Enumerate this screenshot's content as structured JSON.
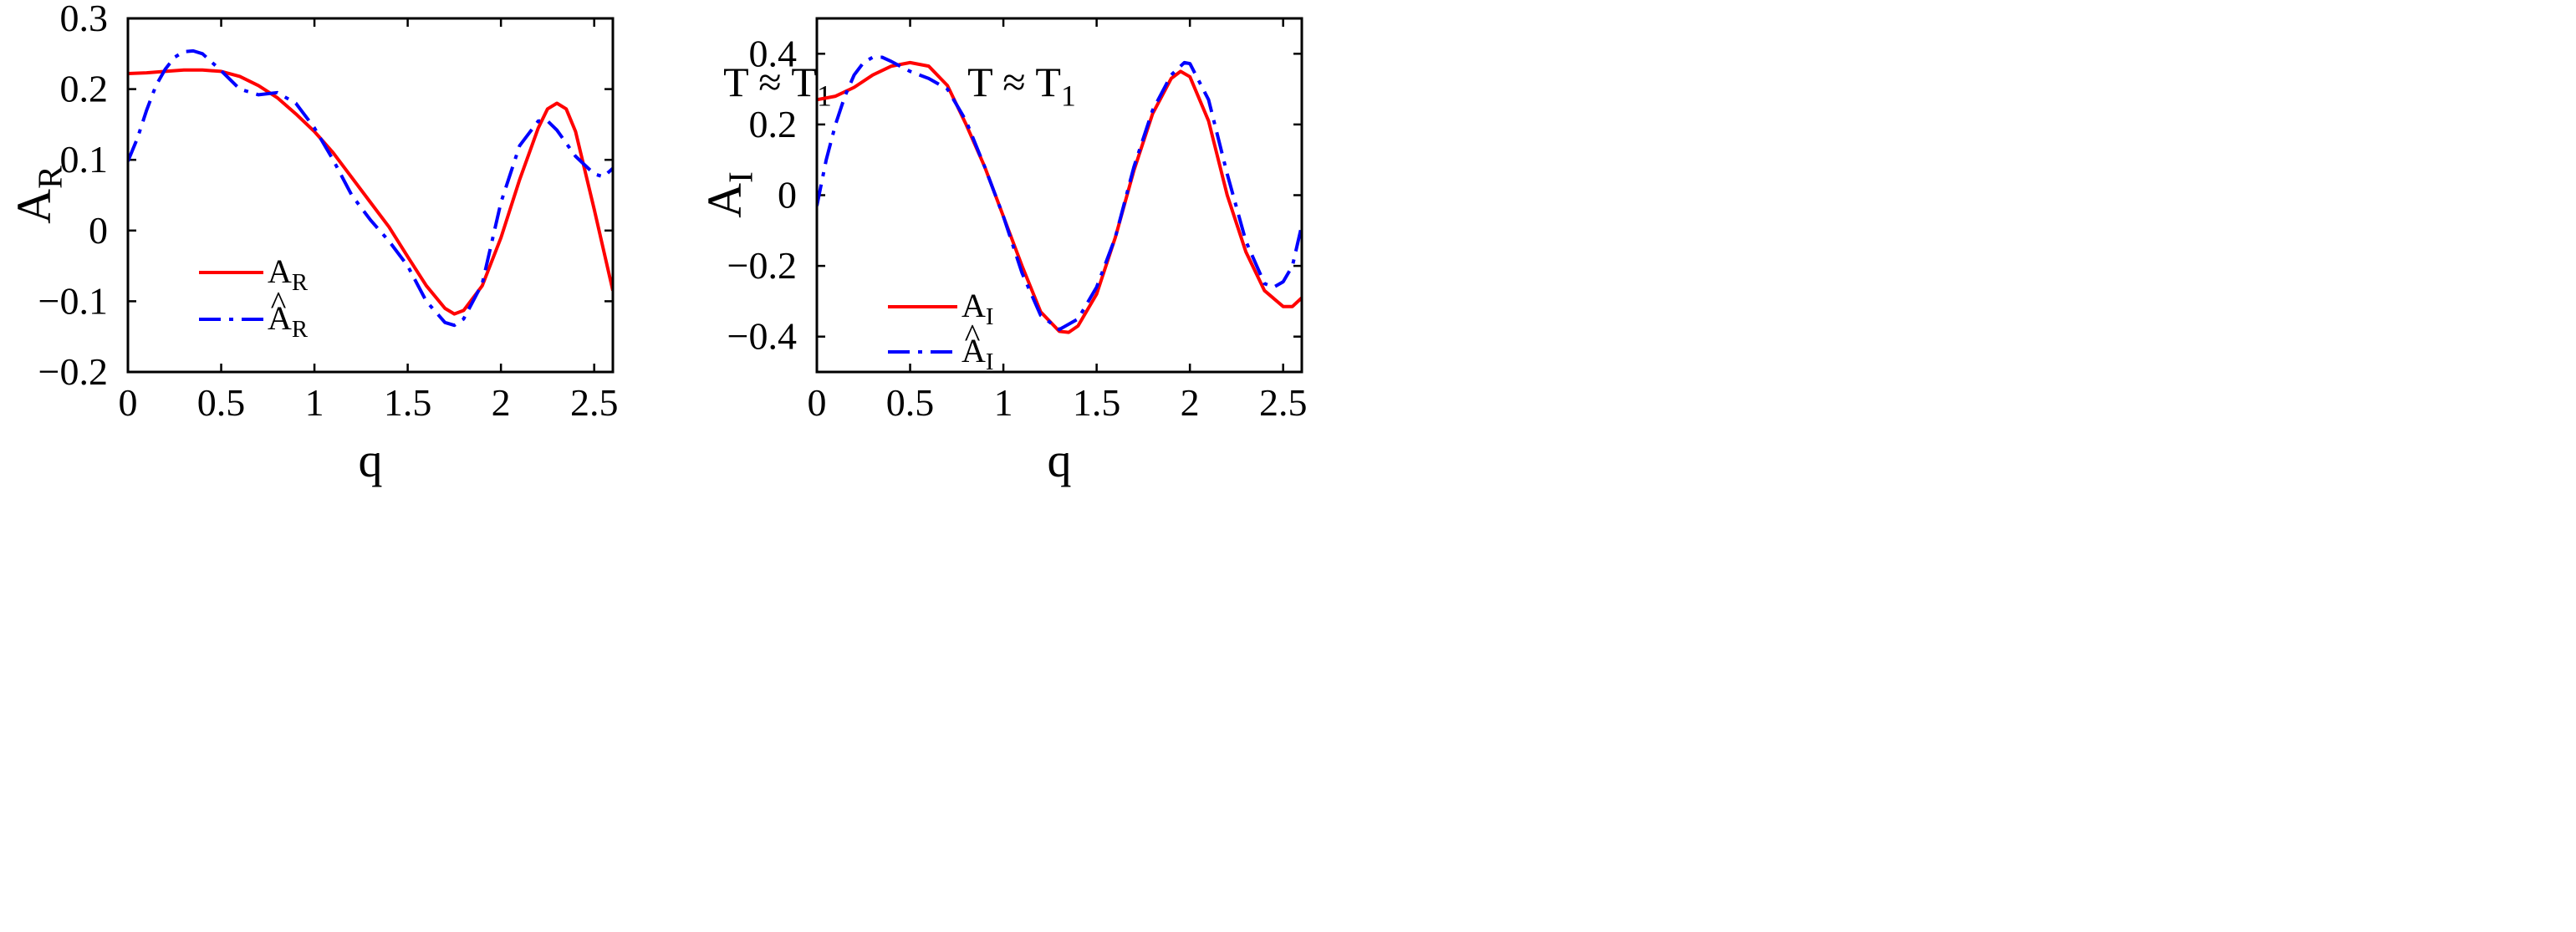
{
  "chart_data": [
    {
      "type": "line",
      "xlabel": "q",
      "ylabel": "A",
      "ylabel_sub": "R",
      "annotation": "T ≈ T",
      "annotation_sub": "1",
      "xlim": [
        0,
        2.6
      ],
      "ylim": [
        -0.2,
        0.3
      ],
      "xticks": [
        0,
        0.5,
        1,
        1.5,
        2,
        2.5
      ],
      "xtick_labels": [
        "0",
        "0.5",
        "1",
        "1.5",
        "2",
        "2.5"
      ],
      "yticks": [
        -0.2,
        -0.1,
        0,
        0.1,
        0.2,
        0.3
      ],
      "ytick_labels": [
        "−0.2",
        "−0.1",
        "0",
        "0.1",
        "0.2",
        "0.3"
      ],
      "legend_position": "bottom-left",
      "series": [
        {
          "name": "A",
          "name_sub": "R",
          "hat": false,
          "color": "#ff0000",
          "style": "solid",
          "x": [
            0,
            0.1,
            0.2,
            0.3,
            0.4,
            0.5,
            0.6,
            0.7,
            0.8,
            0.9,
            1.0,
            1.1,
            1.2,
            1.3,
            1.4,
            1.5,
            1.6,
            1.7,
            1.75,
            1.8,
            1.9,
            2.0,
            2.1,
            2.2,
            2.25,
            2.3,
            2.35,
            2.4,
            2.5,
            2.6
          ],
          "y": [
            0.222,
            0.223,
            0.225,
            0.227,
            0.227,
            0.225,
            0.218,
            0.205,
            0.188,
            0.165,
            0.14,
            0.11,
            0.075,
            0.04,
            0.005,
            -0.037,
            -0.078,
            -0.11,
            -0.118,
            -0.113,
            -0.078,
            -0.01,
            0.072,
            0.145,
            0.172,
            0.18,
            0.172,
            0.14,
            0.03,
            -0.085
          ]
        },
        {
          "name": "A",
          "name_sub": "R",
          "hat": true,
          "color": "#0000ff",
          "style": "dashdot",
          "x": [
            0,
            0.05,
            0.1,
            0.15,
            0.2,
            0.25,
            0.3,
            0.35,
            0.4,
            0.5,
            0.6,
            0.7,
            0.8,
            0.9,
            1.0,
            1.1,
            1.2,
            1.3,
            1.4,
            1.5,
            1.6,
            1.7,
            1.75,
            1.8,
            1.9,
            2.0,
            2.1,
            2.2,
            2.25,
            2.3,
            2.4,
            2.5,
            2.55,
            2.6
          ],
          "y": [
            0.098,
            0.13,
            0.17,
            0.205,
            0.228,
            0.245,
            0.253,
            0.254,
            0.25,
            0.226,
            0.2,
            0.192,
            0.195,
            0.18,
            0.145,
            0.1,
            0.05,
            0.015,
            -0.015,
            -0.05,
            -0.1,
            -0.13,
            -0.134,
            -0.125,
            -0.075,
            0.04,
            0.12,
            0.155,
            0.155,
            0.142,
            0.105,
            0.08,
            0.076,
            0.088
          ]
        }
      ]
    },
    {
      "type": "line",
      "xlabel": "q",
      "ylabel": "A",
      "ylabel_sub": "I",
      "annotation": "T ≈ T",
      "annotation_sub": "1",
      "xlim": [
        0,
        2.6
      ],
      "ylim": [
        -0.5,
        0.5
      ],
      "xticks": [
        0,
        0.5,
        1,
        1.5,
        2,
        2.5
      ],
      "xtick_labels": [
        "0",
        "0.5",
        "1",
        "1.5",
        "2",
        "2.5"
      ],
      "yticks": [
        -0.4,
        -0.2,
        0,
        0.2,
        0.4
      ],
      "ytick_labels": [
        "−0.4",
        "−0.2",
        "0",
        "0.2",
        "0.4"
      ],
      "legend_position": "bottom-left",
      "series": [
        {
          "name": "A",
          "name_sub": "I",
          "hat": false,
          "color": "#ff0000",
          "style": "solid",
          "x": [
            0,
            0.1,
            0.2,
            0.3,
            0.4,
            0.5,
            0.6,
            0.7,
            0.8,
            0.9,
            1.0,
            1.1,
            1.2,
            1.3,
            1.35,
            1.4,
            1.5,
            1.6,
            1.7,
            1.8,
            1.9,
            1.95,
            2.0,
            2.1,
            2.2,
            2.3,
            2.4,
            2.5,
            2.55,
            2.6
          ],
          "y": [
            0.27,
            0.28,
            0.305,
            0.34,
            0.365,
            0.375,
            0.365,
            0.31,
            0.2,
            0.08,
            -0.06,
            -0.2,
            -0.33,
            -0.385,
            -0.388,
            -0.37,
            -0.28,
            -0.12,
            0.07,
            0.23,
            0.33,
            0.35,
            0.335,
            0.21,
            0.0,
            -0.16,
            -0.27,
            -0.315,
            -0.315,
            -0.29
          ]
        },
        {
          "name": "A",
          "name_sub": "I",
          "hat": true,
          "color": "#0000ff",
          "style": "dashdot",
          "x": [
            0,
            0.05,
            0.1,
            0.15,
            0.2,
            0.25,
            0.3,
            0.35,
            0.4,
            0.5,
            0.6,
            0.7,
            0.8,
            0.9,
            1.0,
            1.1,
            1.2,
            1.3,
            1.4,
            1.5,
            1.6,
            1.7,
            1.8,
            1.9,
            1.97,
            2.0,
            2.1,
            2.2,
            2.3,
            2.4,
            2.45,
            2.5,
            2.55,
            2.6
          ],
          "y": [
            -0.03,
            0.1,
            0.2,
            0.28,
            0.34,
            0.375,
            0.39,
            0.39,
            0.378,
            0.35,
            0.33,
            0.3,
            0.21,
            0.08,
            -0.06,
            -0.22,
            -0.34,
            -0.38,
            -0.35,
            -0.26,
            -0.12,
            0.08,
            0.24,
            0.34,
            0.375,
            0.372,
            0.27,
            0.06,
            -0.13,
            -0.25,
            -0.26,
            -0.245,
            -0.2,
            -0.085
          ]
        }
      ]
    }
  ]
}
